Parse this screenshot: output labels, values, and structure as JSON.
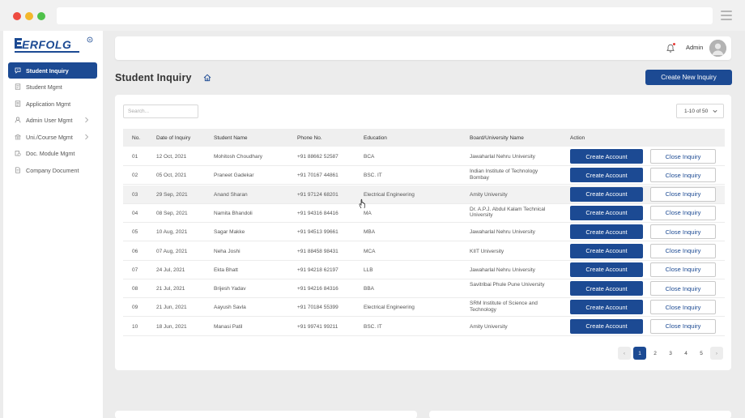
{
  "app": {
    "logo_text": "EERFOLG"
  },
  "sidebar": {
    "items": [
      {
        "label": "Student Inquiry",
        "icon": "inquiry-icon",
        "active": true
      },
      {
        "label": "Student Mgmt",
        "icon": "student-icon"
      },
      {
        "label": "Application Mgmt",
        "icon": "application-icon"
      },
      {
        "label": "Admin User Mgmt",
        "icon": "user-icon",
        "has_submenu": true
      },
      {
        "label": "Uni./Course Mgmt",
        "icon": "university-icon",
        "has_submenu": true
      },
      {
        "label": "Doc. Module Mgmt",
        "icon": "document-module-icon"
      },
      {
        "label": "Company Document",
        "icon": "company-document-icon"
      }
    ]
  },
  "header": {
    "user_name": "Admin"
  },
  "page": {
    "title": "Student Inquiry",
    "create_new_label": "Create New Inquiry"
  },
  "search": {
    "placeholder": "Search..."
  },
  "page_size": {
    "value": "1-10 of 50"
  },
  "table": {
    "headers": {
      "no": "No.",
      "date": "Date of Inquiry",
      "name": "Student Name",
      "phone": "Phone No.",
      "education": "Education",
      "board": "Board/University Name",
      "action": "Action"
    },
    "create_label": "Create Account",
    "close_label": "Close Inquiry",
    "rows": [
      {
        "no": "01",
        "date": "12 Oct, 2021",
        "name": "Mohitosh Choudhary",
        "phone": "+91 88662 52587",
        "education": "BCA",
        "board": "Jawaharlal Nehru University"
      },
      {
        "no": "02",
        "date": "05 Oct, 2021",
        "name": "Praneet Gadekar",
        "phone": "+91 70167 44861",
        "education": "BSC. IT",
        "board": "Indian Institute of Technology Bombay"
      },
      {
        "no": "03",
        "date": "29 Sep, 2021",
        "name": "Anand Sharan",
        "phone": "+91 97124 68201",
        "education": "Electrical Engineering",
        "board": "Amity University"
      },
      {
        "no": "04",
        "date": "08 Sep, 2021",
        "name": "Namita Bhandoli",
        "phone": "+91 94316 84416",
        "education": "MA",
        "board": "Dr. A.P.J. Abdul Kalam Technical University"
      },
      {
        "no": "05",
        "date": "10 Aug, 2021",
        "name": "Sagar Makke",
        "phone": "+91 94513 99661",
        "education": "MBA",
        "board": "Jawaharlal Nehru University"
      },
      {
        "no": "06",
        "date": "07 Aug, 2021",
        "name": "Neha Joshi",
        "phone": "+91 88458 98431",
        "education": "MCA",
        "board": "KIIT University"
      },
      {
        "no": "07",
        "date": "24 Jul, 2021",
        "name": "Ekta Bhatt",
        "phone": "+91 94218 62197",
        "education": "LLB",
        "board": "Jawaharlal Nehru University"
      },
      {
        "no": "08",
        "date": "21 Jul, 2021",
        "name": "Brijesh Yadav",
        "phone": "+91 94216 84316",
        "education": "BBA",
        "board": "Savitribai Phule Pune University"
      },
      {
        "no": "09",
        "date": "21 Jun, 2021",
        "name": "Aayush Savla",
        "phone": "+91 70184 55399",
        "education": "Electrical Engineering",
        "board": "SRM Institute of Science and Technology"
      },
      {
        "no": "10",
        "date": "18 Jun, 2021",
        "name": "Manasi Patil",
        "phone": "+91 99741 99211",
        "education": "BSC. IT",
        "board": "Amity University"
      }
    ]
  },
  "pagination": {
    "pages": [
      "1",
      "2",
      "3",
      "4",
      "5"
    ],
    "current": "1",
    "prev": "‹",
    "next": "›"
  },
  "colors": {
    "primary": "#1c4a93",
    "background": "#ececec",
    "notification_dot": "#e53935"
  }
}
